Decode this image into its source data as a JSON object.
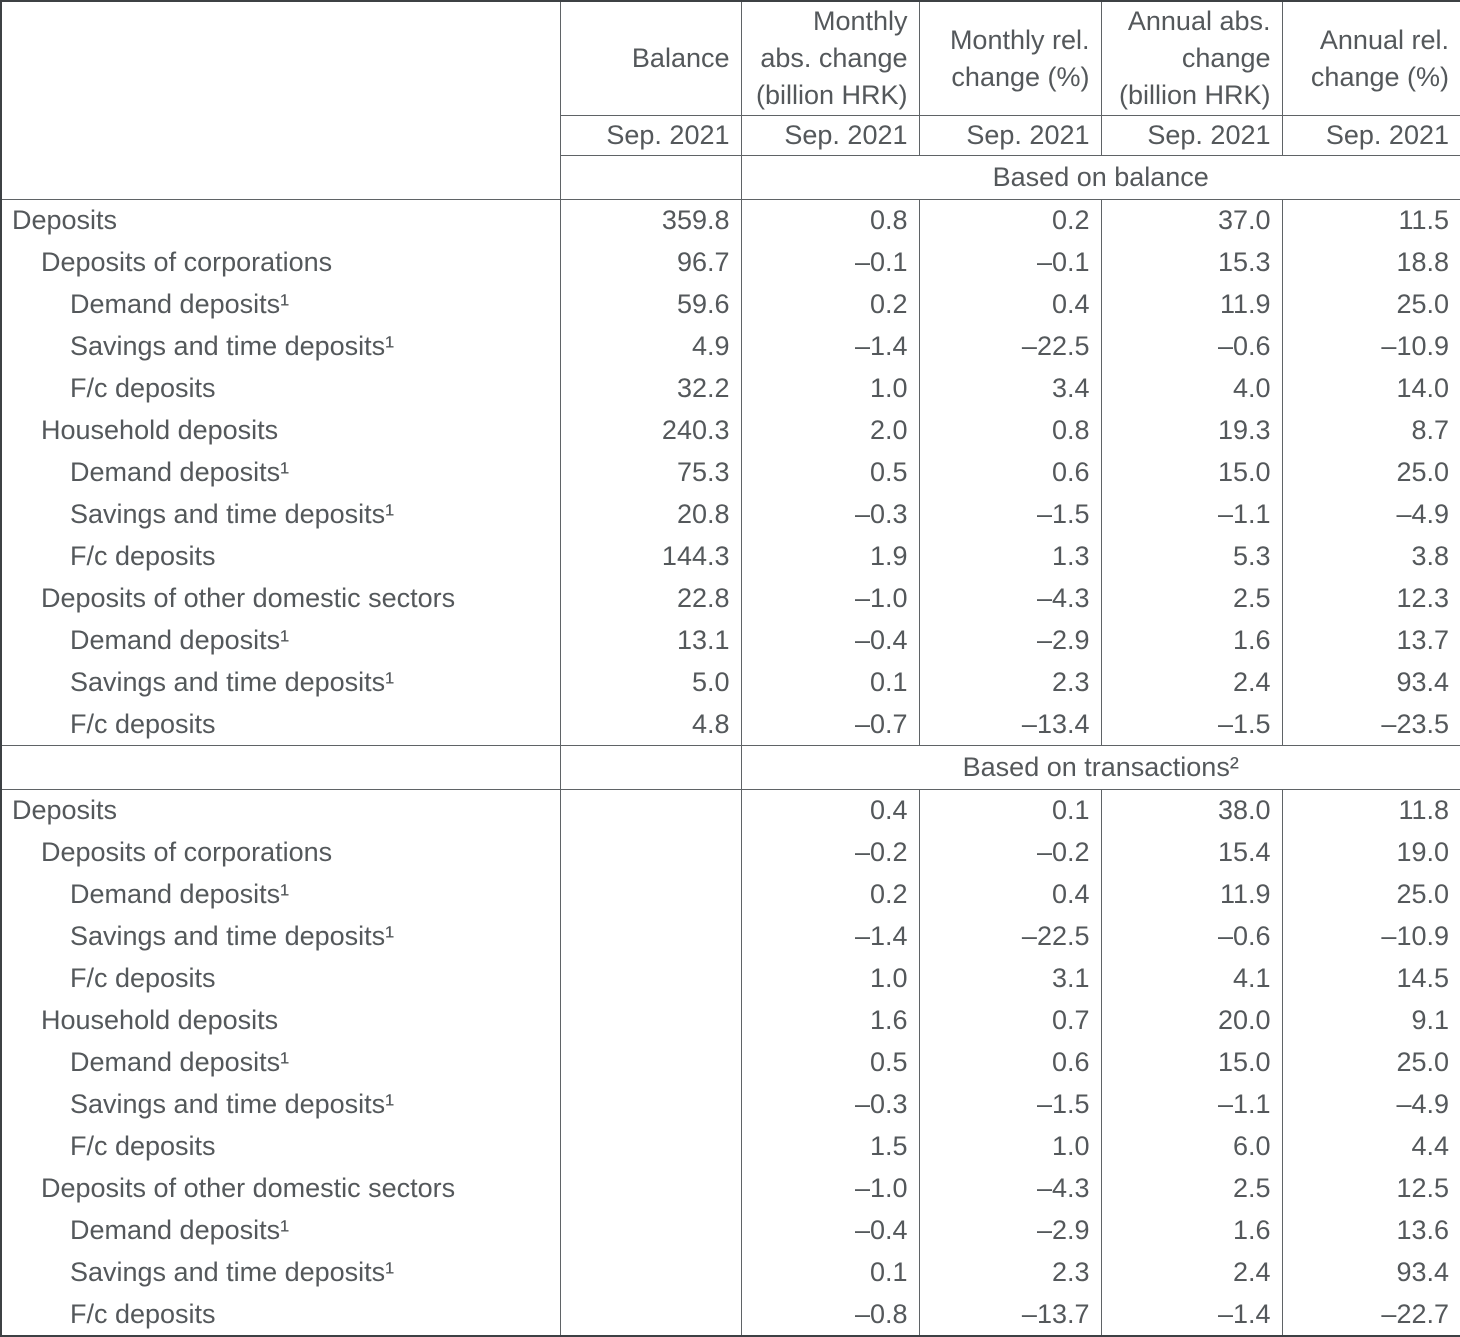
{
  "table": {
    "header": {
      "columns": [
        {
          "label": "Balance",
          "period": "Sep. 2021"
        },
        {
          "label": "Monthly\nabs. change\n(billion HRK)",
          "period": "Sep. 2021"
        },
        {
          "label": "Monthly rel.\nchange (%)",
          "period": "Sep. 2021"
        },
        {
          "label": "Annual abs.\nchange\n(billion HRK)",
          "period": "Sep. 2021"
        },
        {
          "label": "Annual rel.\nchange (%)",
          "period": "Sep. 2021"
        }
      ]
    },
    "sections": [
      {
        "title": "Based on balance",
        "rows": [
          {
            "label": "Deposits",
            "indent": 0,
            "values": [
              "359.8",
              "0.8",
              "0.2",
              "37.0",
              "11.5"
            ]
          },
          {
            "label": "Deposits of corporations",
            "indent": 1,
            "values": [
              "96.7",
              "–0.1",
              "–0.1",
              "15.3",
              "18.8"
            ]
          },
          {
            "label": "Demand deposits¹",
            "indent": 2,
            "values": [
              "59.6",
              "0.2",
              "0.4",
              "11.9",
              "25.0"
            ]
          },
          {
            "label": "Savings and time deposits¹",
            "indent": 2,
            "values": [
              "4.9",
              "–1.4",
              "–22.5",
              "–0.6",
              "–10.9"
            ]
          },
          {
            "label": "F/c deposits",
            "indent": 2,
            "values": [
              "32.2",
              "1.0",
              "3.4",
              "4.0",
              "14.0"
            ]
          },
          {
            "label": "Household deposits",
            "indent": 1,
            "values": [
              "240.3",
              "2.0",
              "0.8",
              "19.3",
              "8.7"
            ]
          },
          {
            "label": "Demand deposits¹",
            "indent": 2,
            "values": [
              "75.3",
              "0.5",
              "0.6",
              "15.0",
              "25.0"
            ]
          },
          {
            "label": "Savings and time deposits¹",
            "indent": 2,
            "values": [
              "20.8",
              "–0.3",
              "–1.5",
              "–1.1",
              "–4.9"
            ]
          },
          {
            "label": "F/c deposits",
            "indent": 2,
            "values": [
              "144.3",
              "1.9",
              "1.3",
              "5.3",
              "3.8"
            ]
          },
          {
            "label": "Deposits of other domestic sectors",
            "indent": 1,
            "values": [
              "22.8",
              "–1.0",
              "–4.3",
              "2.5",
              "12.3"
            ]
          },
          {
            "label": "Demand deposits¹",
            "indent": 2,
            "values": [
              "13.1",
              "–0.4",
              "–2.9",
              "1.6",
              "13.7"
            ]
          },
          {
            "label": "Savings and time deposits¹",
            "indent": 2,
            "values": [
              "5.0",
              "0.1",
              "2.3",
              "2.4",
              "93.4"
            ]
          },
          {
            "label": "F/c deposits",
            "indent": 2,
            "values": [
              "4.8",
              "–0.7",
              "–13.4",
              "–1.5",
              "–23.5"
            ]
          }
        ]
      },
      {
        "title": "Based on transactions²",
        "rows": [
          {
            "label": "Deposits",
            "indent": 0,
            "values": [
              "",
              "0.4",
              "0.1",
              "38.0",
              "11.8"
            ]
          },
          {
            "label": "Deposits of corporations",
            "indent": 1,
            "values": [
              "",
              "–0.2",
              "–0.2",
              "15.4",
              "19.0"
            ]
          },
          {
            "label": "Demand deposits¹",
            "indent": 2,
            "values": [
              "",
              "0.2",
              "0.4",
              "11.9",
              "25.0"
            ]
          },
          {
            "label": "Savings and time deposits¹",
            "indent": 2,
            "values": [
              "",
              "–1.4",
              "–22.5",
              "–0.6",
              "–10.9"
            ]
          },
          {
            "label": "F/c deposits",
            "indent": 2,
            "values": [
              "",
              "1.0",
              "3.1",
              "4.1",
              "14.5"
            ]
          },
          {
            "label": "Household deposits",
            "indent": 1,
            "values": [
              "",
              "1.6",
              "0.7",
              "20.0",
              "9.1"
            ]
          },
          {
            "label": "Demand deposits¹",
            "indent": 2,
            "values": [
              "",
              "0.5",
              "0.6",
              "15.0",
              "25.0"
            ]
          },
          {
            "label": "Savings and time deposits¹",
            "indent": 2,
            "values": [
              "",
              "–0.3",
              "–1.5",
              "–1.1",
              "–4.9"
            ]
          },
          {
            "label": "F/c deposits",
            "indent": 2,
            "values": [
              "",
              "1.5",
              "1.0",
              "6.0",
              "4.4"
            ]
          },
          {
            "label": "Deposits of other domestic sectors",
            "indent": 1,
            "values": [
              "",
              "–1.0",
              "–4.3",
              "2.5",
              "12.5"
            ]
          },
          {
            "label": "Demand deposits¹",
            "indent": 2,
            "values": [
              "",
              "–0.4",
              "–2.9",
              "1.6",
              "13.6"
            ]
          },
          {
            "label": "Savings and time deposits¹",
            "indent": 2,
            "values": [
              "",
              "0.1",
              "2.3",
              "2.4",
              "93.4"
            ]
          },
          {
            "label": "F/c deposits",
            "indent": 2,
            "values": [
              "",
              "–0.8",
              "–13.7",
              "–1.4",
              "–22.7"
            ]
          }
        ]
      }
    ]
  }
}
